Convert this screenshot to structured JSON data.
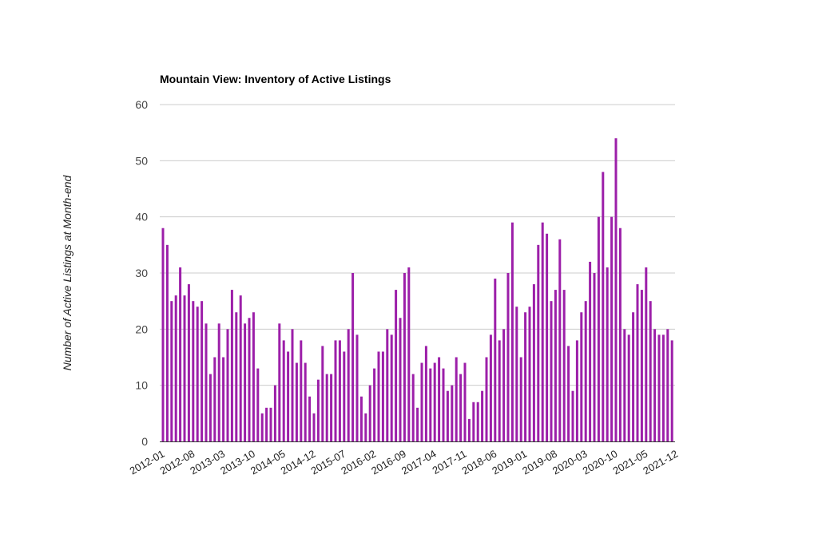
{
  "chart_data": {
    "type": "bar",
    "title": "Mountain View: Inventory of Active Listings",
    "xlabel": "",
    "ylabel": "Number of Active Listings at Month-end",
    "ylim": [
      0,
      60
    ],
    "yticks": [
      0,
      10,
      20,
      30,
      40,
      50,
      60
    ],
    "grid": true,
    "legend": "none",
    "bar_color": "#9c1fa9",
    "x_tick_labels": [
      "2012-01",
      "2012-08",
      "2013-03",
      "2013-10",
      "2014-05",
      "2014-12",
      "2015-07",
      "2016-02",
      "2016-09",
      "2017-04",
      "2017-11",
      "2018-06",
      "2019-01",
      "2019-08",
      "2020-03",
      "2020-10",
      "2021-05",
      "2021-12"
    ],
    "categories": [
      "2012-01",
      "2012-02",
      "2012-03",
      "2012-04",
      "2012-05",
      "2012-06",
      "2012-07",
      "2012-08",
      "2012-09",
      "2012-10",
      "2012-11",
      "2012-12",
      "2013-01",
      "2013-02",
      "2013-03",
      "2013-04",
      "2013-05",
      "2013-06",
      "2013-07",
      "2013-08",
      "2013-09",
      "2013-10",
      "2013-11",
      "2013-12",
      "2014-01",
      "2014-02",
      "2014-03",
      "2014-04",
      "2014-05",
      "2014-06",
      "2014-07",
      "2014-08",
      "2014-09",
      "2014-10",
      "2014-11",
      "2014-12",
      "2015-01",
      "2015-02",
      "2015-03",
      "2015-04",
      "2015-05",
      "2015-06",
      "2015-07",
      "2015-08",
      "2015-09",
      "2015-10",
      "2015-11",
      "2015-12",
      "2016-01",
      "2016-02",
      "2016-03",
      "2016-04",
      "2016-05",
      "2016-06",
      "2016-07",
      "2016-08",
      "2016-09",
      "2016-10",
      "2016-11",
      "2016-12",
      "2017-01",
      "2017-02",
      "2017-03",
      "2017-04",
      "2017-05",
      "2017-06",
      "2017-07",
      "2017-08",
      "2017-09",
      "2017-10",
      "2017-11",
      "2017-12",
      "2018-01",
      "2018-02",
      "2018-03",
      "2018-04",
      "2018-05",
      "2018-06",
      "2018-07",
      "2018-08",
      "2018-09",
      "2018-10",
      "2018-11",
      "2018-12",
      "2019-01",
      "2019-02",
      "2019-03",
      "2019-04",
      "2019-05",
      "2019-06",
      "2019-07",
      "2019-08",
      "2019-09",
      "2019-10",
      "2019-11",
      "2019-12",
      "2020-01",
      "2020-02",
      "2020-03",
      "2020-04",
      "2020-05",
      "2020-06",
      "2020-07",
      "2020-08",
      "2020-09",
      "2020-10",
      "2020-11",
      "2020-12",
      "2021-01",
      "2021-02",
      "2021-03",
      "2021-04",
      "2021-05",
      "2021-06",
      "2021-07",
      "2021-08",
      "2021-09",
      "2021-10",
      "2021-11"
    ],
    "values": [
      38,
      35,
      25,
      26,
      31,
      26,
      28,
      25,
      24,
      25,
      21,
      12,
      15,
      21,
      15,
      20,
      27,
      23,
      26,
      21,
      22,
      23,
      13,
      5,
      6,
      6,
      10,
      21,
      18,
      16,
      20,
      14,
      18,
      14,
      8,
      5,
      11,
      17,
      12,
      12,
      18,
      18,
      16,
      20,
      30,
      19,
      8,
      5,
      10,
      13,
      16,
      16,
      20,
      19,
      27,
      22,
      30,
      31,
      12,
      6,
      14,
      17,
      13,
      14,
      15,
      13,
      9,
      10,
      15,
      12,
      14,
      4,
      7,
      7,
      9,
      15,
      19,
      29,
      18,
      20,
      30,
      39,
      24,
      15,
      23,
      24,
      28,
      35,
      39,
      37,
      25,
      27,
      36,
      27,
      17,
      9,
      18,
      23,
      25,
      32,
      30,
      40,
      48,
      31,
      40,
      54,
      38,
      20,
      19,
      23,
      28,
      27,
      31,
      25,
      20,
      19,
      19,
      20,
      18
    ]
  }
}
